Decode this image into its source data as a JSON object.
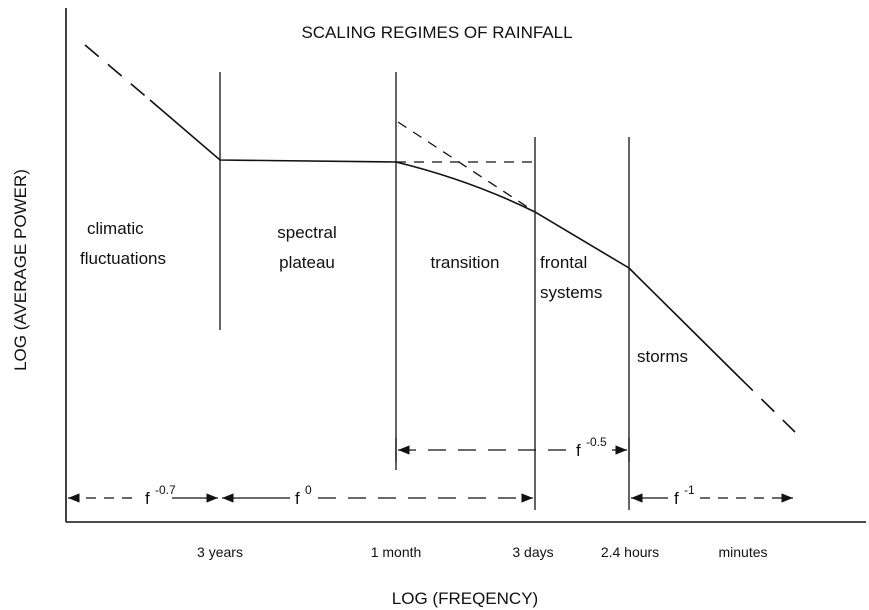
{
  "title": "SCALING REGIMES OF RAINFALL",
  "axes": {
    "y_label": "LOG (AVERAGE POWER)",
    "x_label": "LOG (FREQENCY)"
  },
  "regions": [
    {
      "lines": [
        "climatic",
        "fluctuations"
      ]
    },
    {
      "lines": [
        "spectral",
        "plateau"
      ]
    },
    {
      "lines": [
        "transition"
      ]
    },
    {
      "lines": [
        "frontal",
        "systems"
      ]
    },
    {
      "lines": [
        "storms"
      ]
    }
  ],
  "ticks": [
    "3 years",
    "1 month",
    "3 days",
    "2.4 hours",
    "minutes"
  ],
  "laws": [
    {
      "base": "f",
      "power": "-0.7"
    },
    {
      "base": "f",
      "power": "0"
    },
    {
      "base": "f",
      "power": "-0.5"
    },
    {
      "base": "f",
      "power": "-1"
    }
  ]
}
